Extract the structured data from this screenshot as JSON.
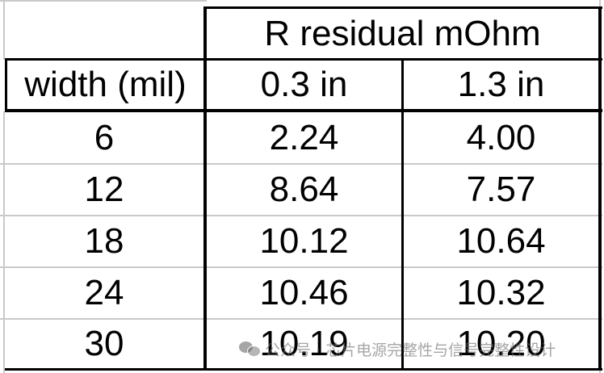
{
  "table": {
    "group_header": "R residual mOhm",
    "columns": [
      "width (mil)",
      "0.3 in",
      "1.3 in"
    ],
    "rows": [
      [
        "6",
        "2.24",
        "4.00"
      ],
      [
        "12",
        "8.64",
        "7.57"
      ],
      [
        "18",
        "10.12",
        "10.64"
      ],
      [
        "24",
        "10.46",
        "10.32"
      ],
      [
        "30",
        "10.19",
        "10.20"
      ]
    ]
  },
  "watermark": {
    "icon": "wechat-icon",
    "text": "公众号 · 芯片电源完整性与信号完整性设计"
  }
}
